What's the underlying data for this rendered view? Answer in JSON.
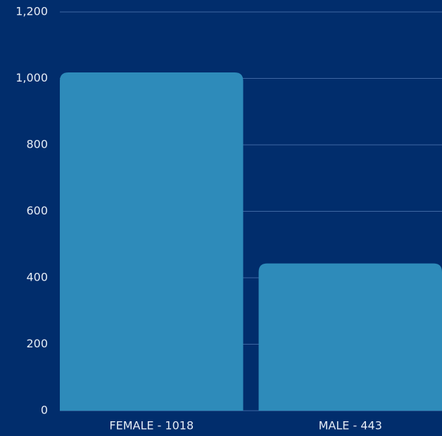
{
  "chart_data": {
    "type": "bar",
    "categories": [
      "FEMALE - 1018",
      "MALE - 443"
    ],
    "values": [
      1018,
      443
    ],
    "color": "#2e8bba",
    "ylim": [
      0,
      1200
    ],
    "yticks": [
      0,
      200,
      400,
      600,
      800,
      {
        "value": 1000,
        "label": "1,000"
      },
      {
        "value": 1200,
        "label": "1,200"
      }
    ],
    "grid": true
  }
}
